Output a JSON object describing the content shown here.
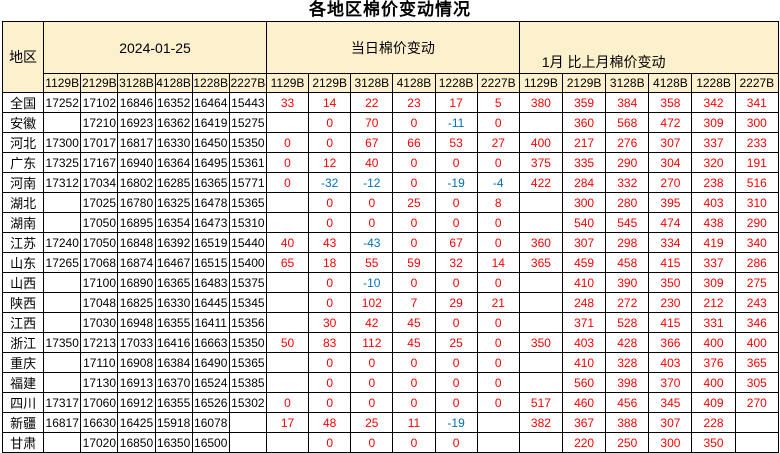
{
  "colors": {
    "header_bg": "#FCF0CD",
    "change_positive_text": "#FF0000",
    "change_negative_text": "#0070C0",
    "grid_border": "#000000"
  },
  "chart_data": {
    "type": "table",
    "title": "各地区棉价变动情况",
    "region_column_header": "地区",
    "column_groups": [
      {
        "label": "2024-01-25",
        "columns": [
          "1129B",
          "2129B",
          "3128B",
          "4128B",
          "1228B",
          "2227B"
        ]
      },
      {
        "label": "当日棉价变动",
        "columns": [
          "1129B",
          "2129B",
          "3128B",
          "4128B",
          "1228B",
          "2227B"
        ]
      },
      {
        "label": "1月 比上月棉价变动",
        "columns": [
          "1129B",
          "2129B",
          "3128B",
          "4128B",
          "1228B",
          "2227B"
        ]
      }
    ],
    "rows": [
      {
        "region": "全国",
        "prices_2024_01_25": [
          17252,
          17102,
          16846,
          16352,
          16464,
          15443
        ],
        "daily_change": [
          33,
          14,
          22,
          23,
          17,
          5
        ],
        "monthly_change": [
          380,
          359,
          384,
          358,
          342,
          341
        ]
      },
      {
        "region": "安徽",
        "prices_2024_01_25": [
          null,
          17210,
          16923,
          16362,
          16419,
          15275
        ],
        "daily_change": [
          null,
          0,
          70,
          0,
          -11,
          0
        ],
        "monthly_change": [
          null,
          360,
          568,
          472,
          309,
          300
        ]
      },
      {
        "region": "河北",
        "prices_2024_01_25": [
          17300,
          17017,
          16817,
          16330,
          16450,
          15350
        ],
        "daily_change": [
          0,
          0,
          67,
          66,
          53,
          27
        ],
        "monthly_change": [
          400,
          217,
          276,
          307,
          337,
          233
        ]
      },
      {
        "region": "广东",
        "prices_2024_01_25": [
          17325,
          17167,
          16940,
          16364,
          16495,
          15361
        ],
        "daily_change": [
          0,
          12,
          40,
          0,
          0,
          0
        ],
        "monthly_change": [
          375,
          335,
          290,
          304,
          320,
          191
        ]
      },
      {
        "region": "河南",
        "prices_2024_01_25": [
          17312,
          17034,
          16802,
          16285,
          16365,
          15771
        ],
        "daily_change": [
          0,
          -32,
          -12,
          0,
          -19,
          -4
        ],
        "monthly_change": [
          422,
          284,
          332,
          270,
          238,
          516
        ]
      },
      {
        "region": "湖北",
        "prices_2024_01_25": [
          null,
          17025,
          16780,
          16325,
          16478,
          15365
        ],
        "daily_change": [
          null,
          0,
          0,
          25,
          0,
          8
        ],
        "monthly_change": [
          null,
          300,
          280,
          395,
          403,
          310
        ]
      },
      {
        "region": "湖南",
        "prices_2024_01_25": [
          null,
          17050,
          16895,
          16354,
          16473,
          15310
        ],
        "daily_change": [
          null,
          0,
          0,
          0,
          0,
          0
        ],
        "monthly_change": [
          null,
          540,
          545,
          474,
          438,
          290
        ]
      },
      {
        "region": "江苏",
        "prices_2024_01_25": [
          17240,
          17050,
          16848,
          16392,
          16519,
          15440
        ],
        "daily_change": [
          40,
          43,
          -43,
          0,
          67,
          0
        ],
        "monthly_change": [
          360,
          307,
          298,
          334,
          419,
          340
        ]
      },
      {
        "region": "山东",
        "prices_2024_01_25": [
          17265,
          17068,
          16874,
          16467,
          16515,
          15400
        ],
        "daily_change": [
          65,
          18,
          55,
          59,
          32,
          14
        ],
        "monthly_change": [
          365,
          459,
          458,
          415,
          337,
          286
        ]
      },
      {
        "region": "山西",
        "prices_2024_01_25": [
          null,
          17100,
          16890,
          16365,
          16483,
          15375
        ],
        "daily_change": [
          null,
          0,
          -10,
          0,
          0,
          0
        ],
        "monthly_change": [
          null,
          410,
          390,
          350,
          309,
          275
        ]
      },
      {
        "region": "陕西",
        "prices_2024_01_25": [
          null,
          17048,
          16825,
          16330,
          16445,
          15345
        ],
        "daily_change": [
          null,
          0,
          102,
          7,
          29,
          21
        ],
        "monthly_change": [
          null,
          248,
          272,
          230,
          212,
          243
        ]
      },
      {
        "region": "江西",
        "prices_2024_01_25": [
          null,
          17030,
          16948,
          16355,
          16411,
          15356
        ],
        "daily_change": [
          null,
          30,
          42,
          45,
          0,
          0
        ],
        "monthly_change": [
          null,
          371,
          528,
          415,
          331,
          346
        ]
      },
      {
        "region": "浙江",
        "prices_2024_01_25": [
          17350,
          17213,
          17033,
          16416,
          16663,
          15350
        ],
        "daily_change": [
          50,
          83,
          112,
          45,
          25,
          0
        ],
        "monthly_change": [
          350,
          403,
          428,
          366,
          400,
          400
        ]
      },
      {
        "region": "重庆",
        "prices_2024_01_25": [
          null,
          17110,
          16908,
          16384,
          16490,
          15365
        ],
        "daily_change": [
          null,
          0,
          0,
          0,
          0,
          0
        ],
        "monthly_change": [
          null,
          410,
          328,
          403,
          376,
          365
        ]
      },
      {
        "region": "福建",
        "prices_2024_01_25": [
          null,
          17130,
          16913,
          16370,
          16524,
          15385
        ],
        "daily_change": [
          null,
          0,
          0,
          0,
          0,
          0
        ],
        "monthly_change": [
          null,
          560,
          398,
          370,
          400,
          305
        ]
      },
      {
        "region": "四川",
        "prices_2024_01_25": [
          17317,
          17060,
          16912,
          16355,
          16526,
          15302
        ],
        "daily_change": [
          0,
          0,
          0,
          0,
          0,
          0
        ],
        "monthly_change": [
          517,
          460,
          456,
          345,
          409,
          270
        ]
      },
      {
        "region": "新疆",
        "prices_2024_01_25": [
          16817,
          16630,
          16425,
          15918,
          16078,
          null
        ],
        "daily_change": [
          17,
          48,
          25,
          11,
          -19,
          null
        ],
        "monthly_change": [
          382,
          367,
          388,
          307,
          228,
          null
        ]
      },
      {
        "region": "甘肃",
        "prices_2024_01_25": [
          null,
          17020,
          16850,
          16350,
          16500,
          null
        ],
        "daily_change": [
          null,
          0,
          0,
          0,
          0,
          null
        ],
        "monthly_change": [
          null,
          220,
          250,
          300,
          350,
          null
        ]
      }
    ]
  }
}
